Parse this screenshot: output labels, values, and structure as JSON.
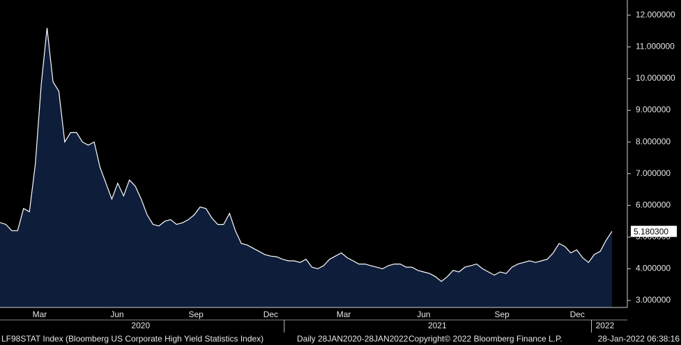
{
  "chart_data": {
    "type": "area",
    "fill_color": "#0e1e3a",
    "line_color": "#ffffff",
    "values": [
      5.46,
      5.4,
      5.2,
      5.2,
      5.9,
      5.8,
      7.3,
      9.8,
      11.6,
      9.9,
      9.6,
      8.0,
      8.3,
      8.3,
      8.0,
      7.9,
      8.0,
      7.2,
      6.7,
      6.2,
      6.7,
      6.3,
      6.8,
      6.6,
      6.2,
      5.7,
      5.4,
      5.35,
      5.5,
      5.55,
      5.4,
      5.45,
      5.55,
      5.7,
      5.95,
      5.9,
      5.6,
      5.4,
      5.4,
      5.75,
      5.2,
      4.8,
      4.75,
      4.65,
      4.55,
      4.45,
      4.4,
      4.38,
      4.3,
      4.25,
      4.25,
      4.2,
      4.3,
      4.05,
      4.0,
      4.1,
      4.3,
      4.4,
      4.5,
      4.35,
      4.25,
      4.15,
      4.15,
      4.1,
      4.05,
      4.0,
      4.1,
      4.15,
      4.15,
      4.05,
      4.05,
      3.95,
      3.9,
      3.85,
      3.75,
      3.6,
      3.75,
      3.95,
      3.9,
      4.05,
      4.1,
      4.15,
      4.0,
      3.9,
      3.8,
      3.9,
      3.85,
      4.05,
      4.15,
      4.2,
      4.25,
      4.2,
      4.25,
      4.3,
      4.5,
      4.8,
      4.7,
      4.5,
      4.6,
      4.35,
      4.2,
      4.45,
      4.55,
      4.9,
      5.1803
    ],
    "last_value_label": "5.180300",
    "xlim": [
      0,
      106.6
    ],
    "xticks": [
      {
        "value": 6.75,
        "label": "Mar"
      },
      {
        "value": 19.9,
        "label": "Jun"
      },
      {
        "value": 33.3,
        "label": "Sep"
      },
      {
        "value": 46.0,
        "label": "Dec"
      },
      {
        "value": 58.4,
        "label": "Mar"
      },
      {
        "value": 72.0,
        "label": "Jun"
      },
      {
        "value": 85.3,
        "label": "Sep"
      },
      {
        "value": 98.1,
        "label": "Dec"
      }
    ],
    "year_ticks": [
      {
        "value": 23.9,
        "label": "2020"
      },
      {
        "value": 74.3,
        "label": "2021"
      },
      {
        "value": 102.8,
        "label": "2022"
      }
    ],
    "year_boundaries": [
      48.3,
      100.5
    ],
    "ylim": [
      2.78,
      12.48
    ],
    "yticks": [
      {
        "value": 3,
        "label": "3.000000"
      },
      {
        "value": 4,
        "label": "4.000000"
      },
      {
        "value": 5,
        "label": "5.000000"
      },
      {
        "value": 6,
        "label": "6.000000"
      },
      {
        "value": 7,
        "label": "7.000000"
      },
      {
        "value": 8,
        "label": "8.000000"
      },
      {
        "value": 9,
        "label": "9.000000"
      },
      {
        "value": 10,
        "label": "10.000000"
      },
      {
        "value": 11,
        "label": "11.000000"
      },
      {
        "value": 12,
        "label": "12.000000"
      }
    ],
    "footer": {
      "security": "LF98STAT Index (Bloomberg US Corporate High Yield Statistics Index)",
      "period": "Daily 28JAN2020-28JAN2022",
      "copyright": "Copyright© 2022 Bloomberg Finance L.P.",
      "timestamp": "28-Jan-2022 06:38:16"
    }
  }
}
